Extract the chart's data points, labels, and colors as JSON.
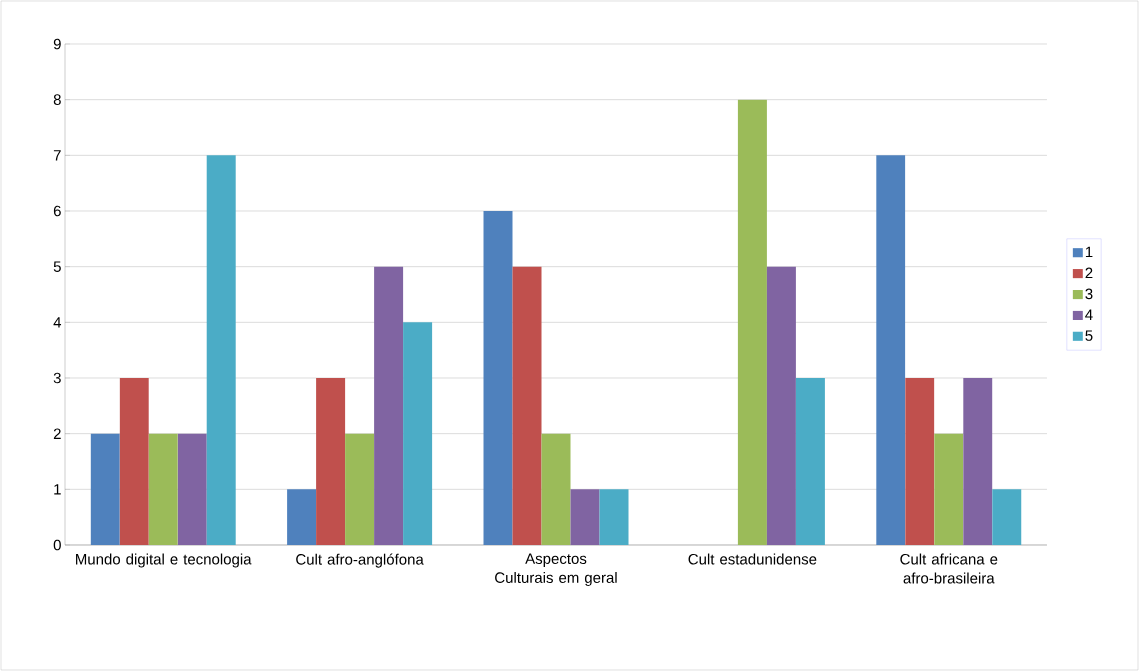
{
  "chart_data": {
    "type": "bar",
    "categories": [
      "Mundo digital e tecnologia",
      "Cult afro-anglófona",
      "Aspectos Culturais em geral",
      "Cult estadunidense",
      "Cult africana e afro-brasileira"
    ],
    "series": [
      {
        "name": "1",
        "color": "#4f81bd",
        "values": [
          2,
          1,
          6,
          0,
          7
        ]
      },
      {
        "name": "2",
        "color": "#c0504d",
        "values": [
          3,
          3,
          5,
          0,
          3
        ]
      },
      {
        "name": "3",
        "color": "#9bbb59",
        "values": [
          2,
          2,
          2,
          8,
          2
        ]
      },
      {
        "name": "4",
        "color": "#8064a2",
        "values": [
          2,
          5,
          1,
          5,
          3
        ]
      },
      {
        "name": "5",
        "color": "#4bacc6",
        "values": [
          7,
          4,
          1,
          3,
          1
        ]
      }
    ],
    "ylim": [
      0,
      9
    ],
    "yticks": [
      0,
      1,
      2,
      3,
      4,
      5,
      6,
      7,
      8,
      9
    ],
    "grid": "y",
    "legend": "right"
  }
}
